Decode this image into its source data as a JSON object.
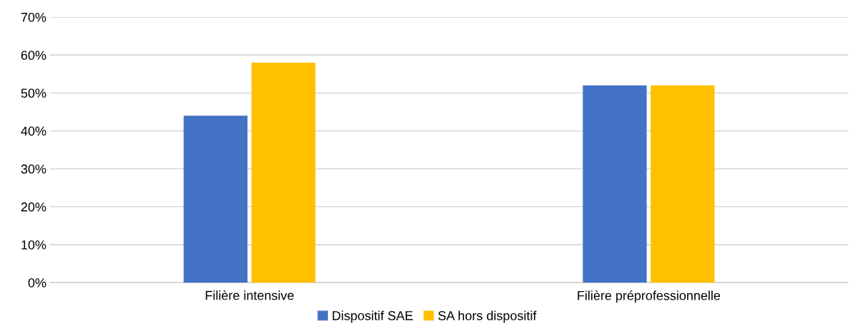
{
  "chart_data": {
    "type": "bar",
    "categories": [
      "Filière intensive",
      "Filière préprofessionnelle"
    ],
    "series": [
      {
        "name": "Dispositif SAE",
        "color": "#4472c4",
        "values": [
          44,
          52
        ]
      },
      {
        "name": "SA hors dispositif",
        "color": "#ffc000",
        "values": [
          58,
          52
        ]
      }
    ],
    "ylim": [
      0,
      70
    ],
    "yticks": [
      {
        "value": 0,
        "label": "0%"
      },
      {
        "value": 10,
        "label": "10%"
      },
      {
        "value": 20,
        "label": "20%"
      },
      {
        "value": 30,
        "label": "30%"
      },
      {
        "value": 40,
        "label": "40%"
      },
      {
        "value": 50,
        "label": "50%"
      },
      {
        "value": 60,
        "label": "60%"
      },
      {
        "value": 70,
        "label": "70%"
      }
    ],
    "grid": "y",
    "legend": "bottom"
  }
}
